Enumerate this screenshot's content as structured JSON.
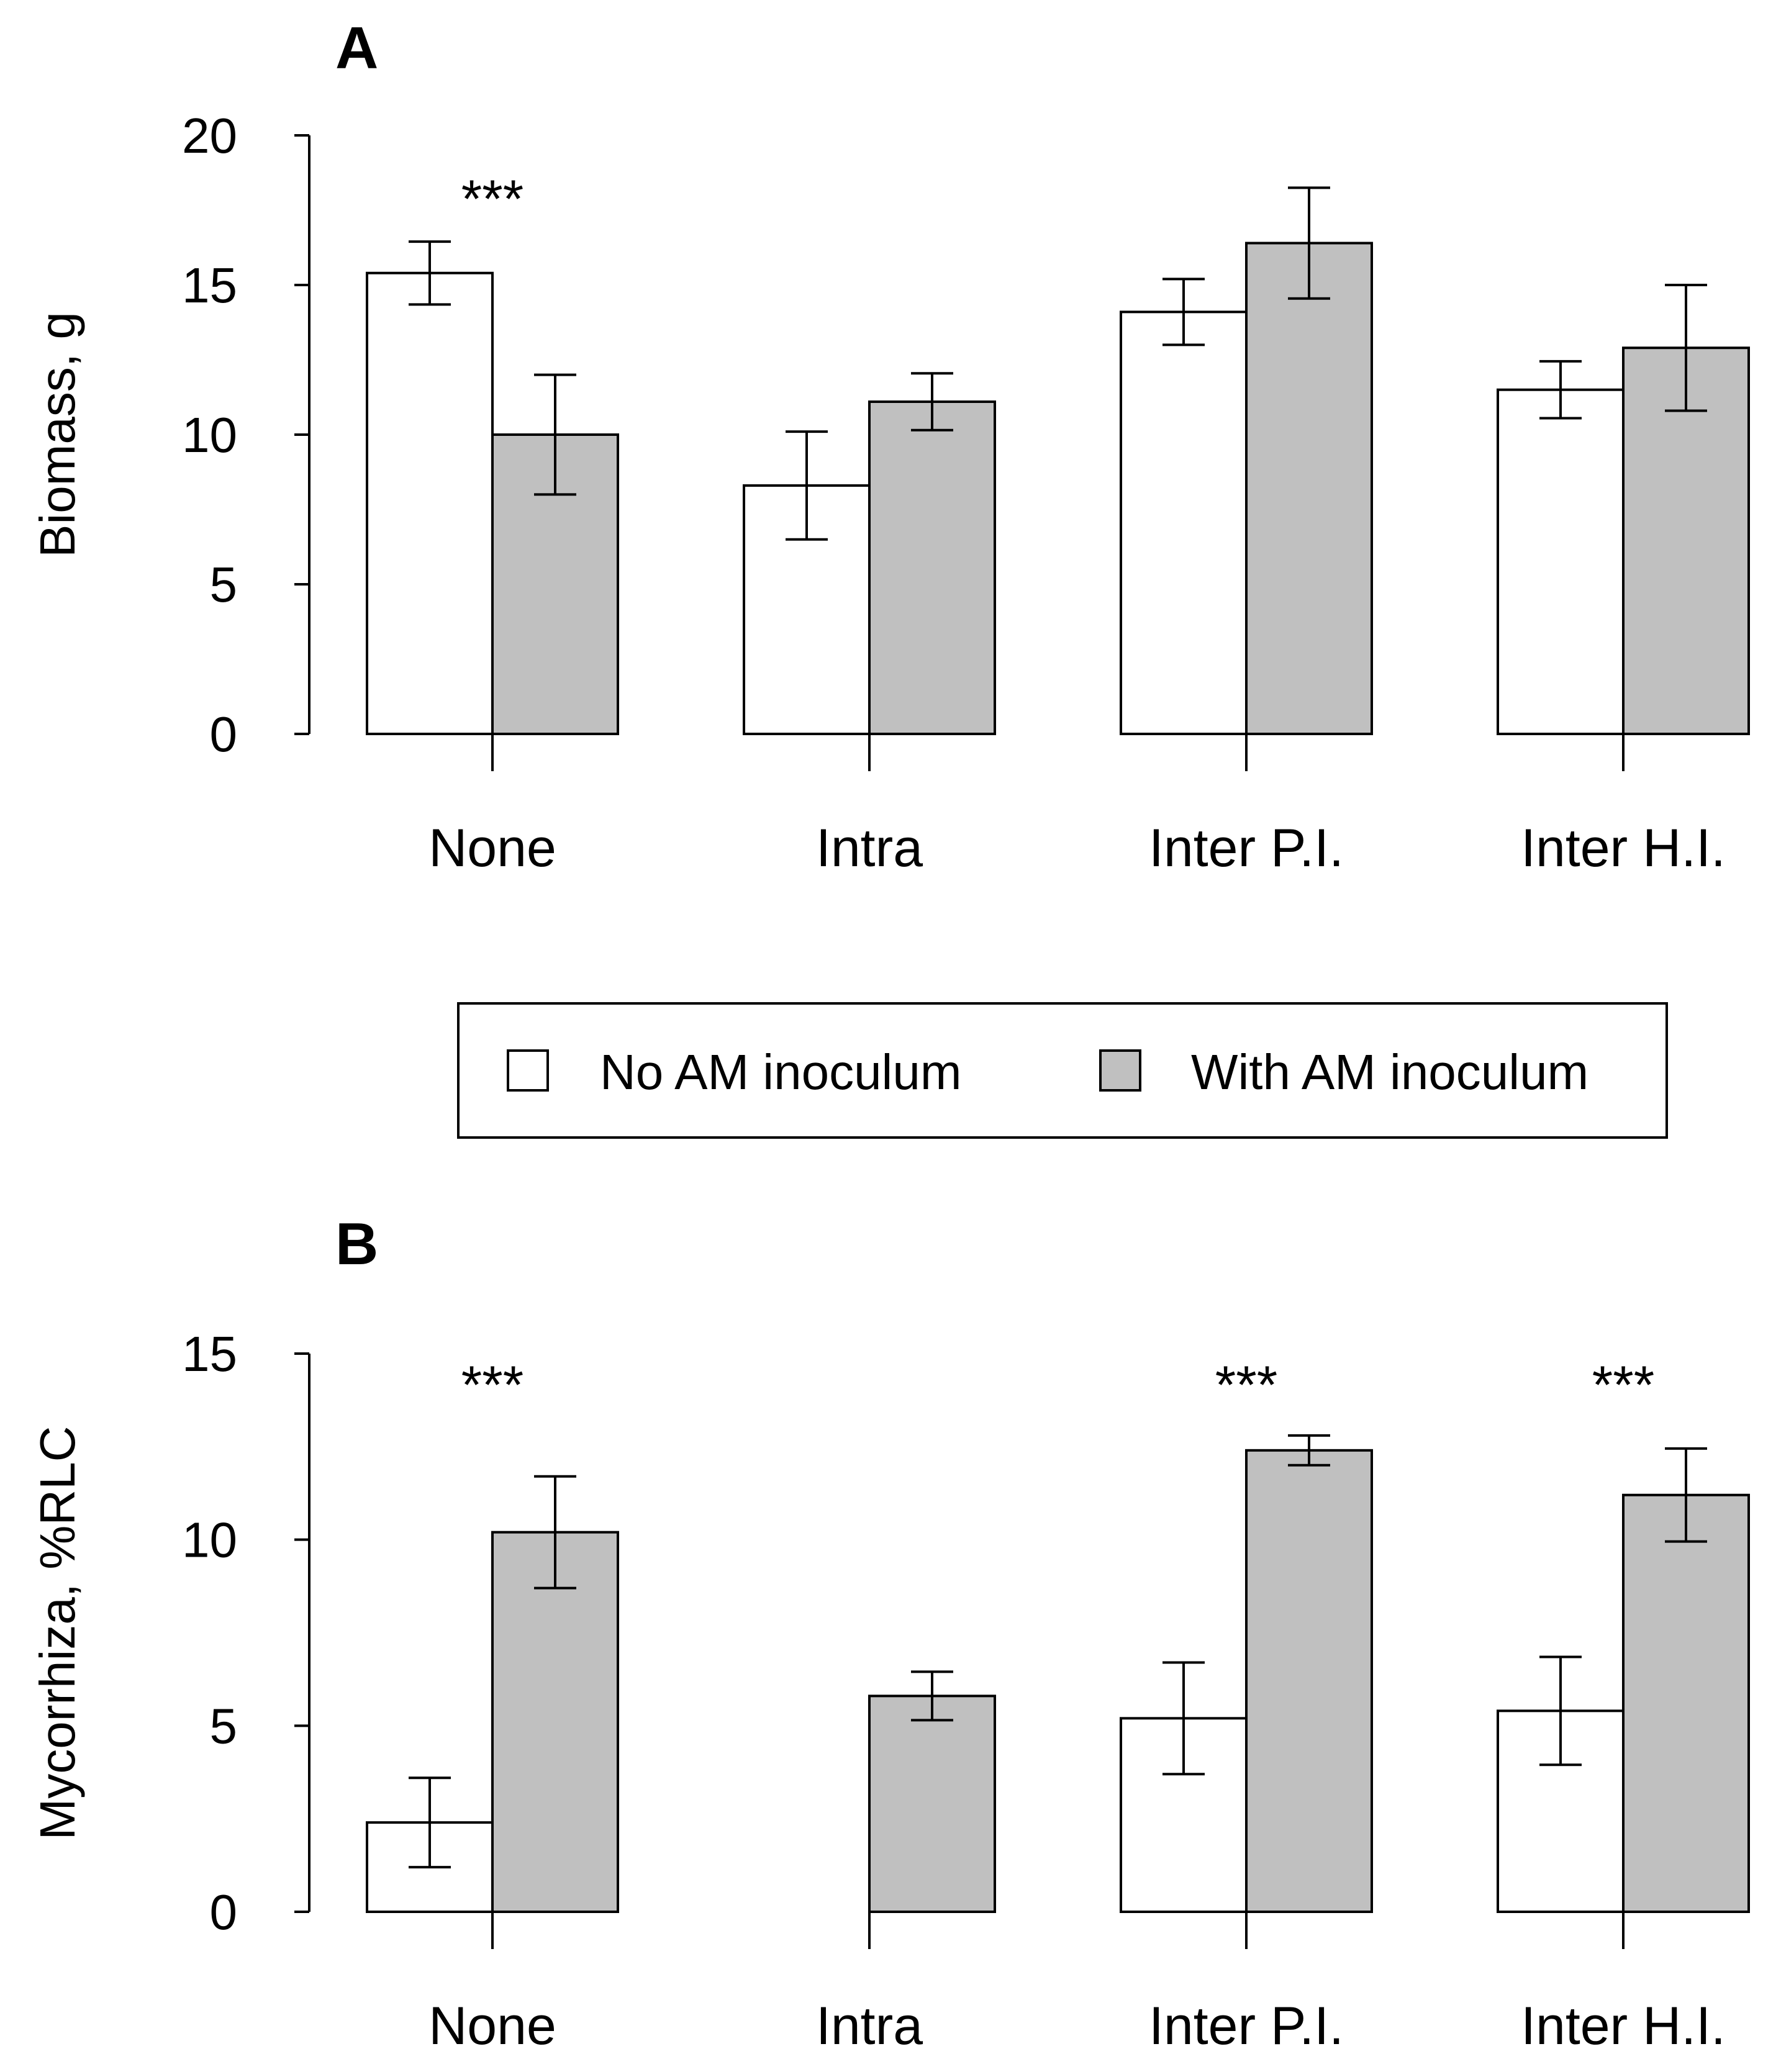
{
  "colors": {
    "no_inoculum_fill": "#ffffff",
    "with_inoculum_fill": "#c0c0c0",
    "stroke": "#000000"
  },
  "legend": {
    "items": [
      {
        "label": "No AM inoculum",
        "color": "#ffffff"
      },
      {
        "label": "With AM inoculum",
        "color": "#c0c0c0"
      }
    ]
  },
  "chart_data": [
    {
      "type": "bar",
      "panel_label": "A",
      "ylabel": "Biomass, g",
      "categories": [
        "None",
        "Intra",
        "Inter P.I.",
        "Inter H.I."
      ],
      "ylim": [
        0,
        20
      ],
      "yticks": [
        0,
        5,
        10,
        15,
        20
      ],
      "series": [
        {
          "name": "No AM inoculum",
          "values": [
            15.4,
            8.3,
            14.1,
            11.5
          ],
          "errors": [
            1.05,
            1.8,
            1.1,
            0.95
          ]
        },
        {
          "name": "With AM inoculum",
          "values": [
            10.0,
            11.1,
            16.4,
            12.9
          ],
          "errors": [
            2.0,
            0.95,
            1.85,
            2.1
          ]
        }
      ],
      "annotations": [
        {
          "category": "None",
          "text": "***"
        }
      ]
    },
    {
      "type": "bar",
      "panel_label": "B",
      "ylabel": "Mycorrhiza, %RLC",
      "categories": [
        "None",
        "Intra",
        "Inter P.I.",
        "Inter H.I."
      ],
      "ylim": [
        0,
        15
      ],
      "yticks": [
        0,
        5,
        10,
        15
      ],
      "series": [
        {
          "name": "No AM inoculum",
          "values": [
            2.4,
            0,
            5.2,
            5.4
          ],
          "errors": [
            1.2,
            0,
            1.5,
            1.45
          ]
        },
        {
          "name": "With AM inoculum",
          "values": [
            10.2,
            5.8,
            12.4,
            11.2
          ],
          "errors": [
            1.5,
            0.65,
            0.4,
            1.25
          ]
        }
      ],
      "annotations": [
        {
          "category": "None",
          "text": "***"
        },
        {
          "category": "Inter P.I.",
          "text": "***"
        },
        {
          "category": "Inter H.I.",
          "text": "***"
        }
      ]
    }
  ]
}
